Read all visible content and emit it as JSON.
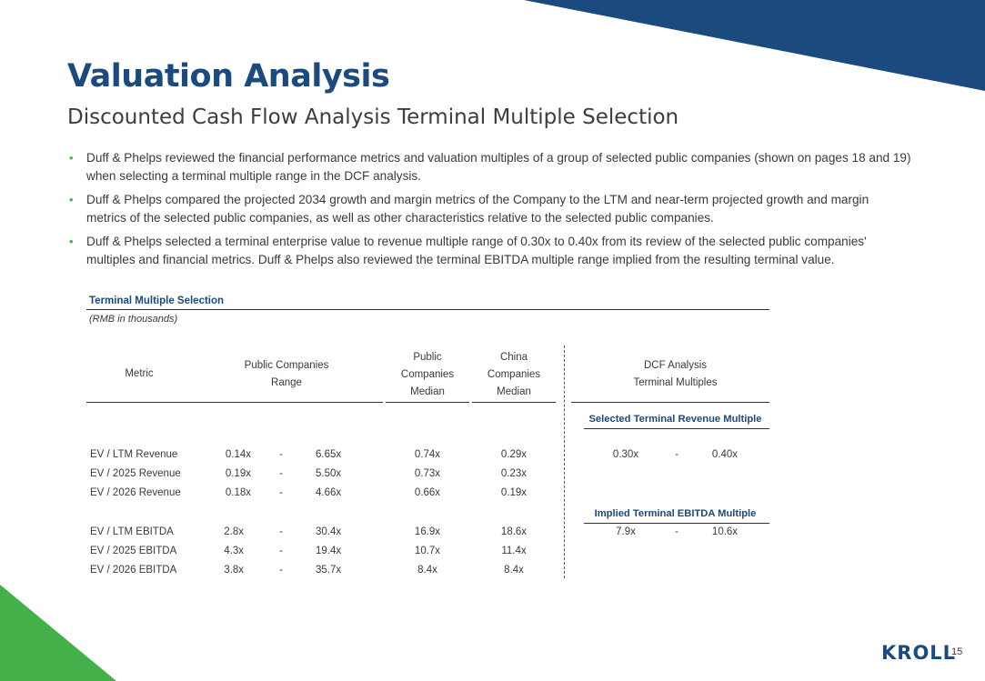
{
  "header": {
    "title": "Valuation Analysis",
    "subtitle": "Discounted Cash Flow Analysis Terminal Multiple Selection"
  },
  "bullets": [
    "Duff & Phelps reviewed the financial performance metrics and valuation multiples of a group of selected public companies (shown on pages 18 and 19) when selecting a terminal multiple range in the DCF analysis.",
    "Duff & Phelps compared the projected 2034 growth and margin metrics of the Company to the LTM and near-term projected growth and margin metrics of the selected public companies, as well as other characteristics relative to the selected public companies.",
    "Duff & Phelps selected a terminal enterprise value to revenue multiple range of 0.30x to 0.40x from its review of the selected public companies' multiples and financial metrics. Duff & Phelps also reviewed the terminal EBITDA multiple range implied from the resulting terminal value."
  ],
  "table": {
    "title": "Terminal Multiple Selection",
    "units": "(RMB in thousands)",
    "headers": {
      "metric": "Metric",
      "range_line1": "Public Companies",
      "range_line2": "Range",
      "public_line1": "Public",
      "public_line2": "Companies",
      "public_line3": "Median",
      "china_line1": "China",
      "china_line2": "Companies",
      "china_line3": "Median",
      "dcf_line1": "DCF Analysis",
      "dcf_line2": "Terminal Multiples"
    },
    "rows": [
      {
        "metric": "EV / LTM Revenue",
        "low": "0.14x",
        "sep": "-",
        "high": "6.65x",
        "public_median": "0.74x",
        "china_median": "0.29x"
      },
      {
        "metric": "EV / 2025 Revenue",
        "low": "0.19x",
        "sep": "-",
        "high": "5.50x",
        "public_median": "0.73x",
        "china_median": "0.23x"
      },
      {
        "metric": "EV / 2026 Revenue",
        "low": "0.18x",
        "sep": "-",
        "high": "4.66x",
        "public_median": "0.66x",
        "china_median": "0.19x"
      },
      {
        "metric": "EV / LTM EBITDA",
        "low": "2.8x",
        "sep": "-",
        "high": "30.4x",
        "public_median": "16.9x",
        "china_median": "18.6x"
      },
      {
        "metric": "EV / 2025 EBITDA",
        "low": "4.3x",
        "sep": "-",
        "high": "19.4x",
        "public_median": "10.7x",
        "china_median": "11.4x"
      },
      {
        "metric": "EV / 2026 EBITDA",
        "low": "3.8x",
        "sep": "-",
        "high": "35.7x",
        "public_median": "8.4x",
        "china_median": "8.4x"
      }
    ],
    "dcf": {
      "revenue_heading": "Selected Terminal Revenue Multiple",
      "revenue_low": "0.30x",
      "revenue_sep": "-",
      "revenue_high": "0.40x",
      "ebitda_heading": "Implied Terminal EBITDA Multiple",
      "ebitda_low": "7.9x",
      "ebitda_sep": "-",
      "ebitda_high": "10.6x"
    }
  },
  "footer": {
    "logo": "KROLL",
    "page_number": "15"
  },
  "colors": {
    "navy": "#1a4a7e",
    "green": "#43b049",
    "text": "#3a3a3a"
  }
}
